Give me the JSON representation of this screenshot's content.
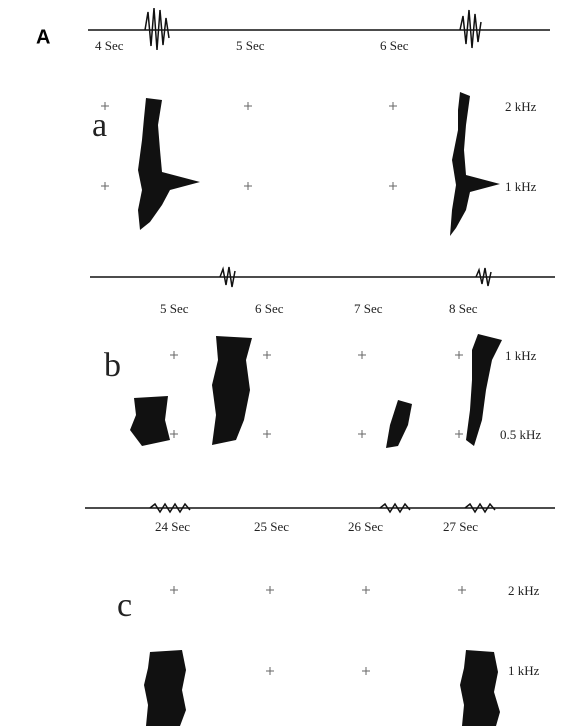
{
  "panel_label": "A",
  "panels": [
    {
      "label": "a",
      "time_labels": [
        "4 Sec",
        "5 Sec",
        "6 Sec"
      ],
      "freq_labels": [
        "2 kHz",
        "1 kHz"
      ]
    },
    {
      "label": "b",
      "time_labels": [
        "5 Sec",
        "6 Sec",
        "7 Sec",
        "8 Sec"
      ],
      "freq_labels": [
        "1 kHz",
        "0.5 kHz"
      ]
    },
    {
      "label": "c",
      "time_labels": [
        "24 Sec",
        "25 Sec",
        "26 Sec",
        "27 Sec"
      ],
      "freq_labels": [
        "2 kHz",
        "1 kHz"
      ]
    }
  ]
}
